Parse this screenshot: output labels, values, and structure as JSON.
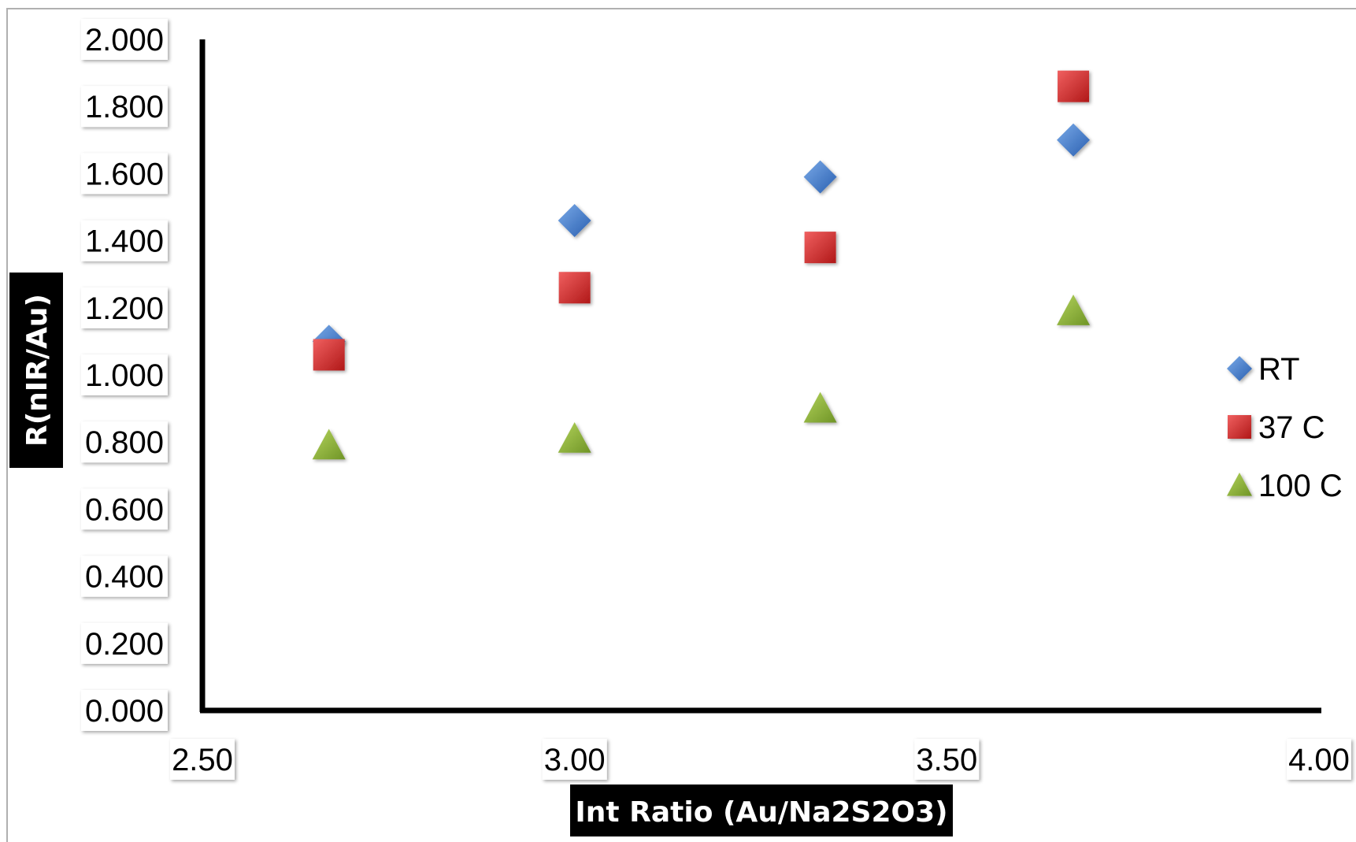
{
  "chart_data": {
    "type": "scatter",
    "title": "",
    "xlabel": "Int Ratio (Au/Na2S2O3)",
    "ylabel": "R(nIR/Au)",
    "xlim": [
      2.5,
      4.0
    ],
    "ylim": [
      0.0,
      2.0
    ],
    "x_ticks": [
      "2.50",
      "3.00",
      "3.50",
      "4.00"
    ],
    "y_ticks": [
      "0.000",
      "0.200",
      "0.400",
      "0.600",
      "0.800",
      "1.000",
      "1.200",
      "1.400",
      "1.600",
      "1.800",
      "2.000"
    ],
    "grid": false,
    "legend_position": "right",
    "series": [
      {
        "name": "RT",
        "marker": "diamond",
        "color": "#3d78c9",
        "points": [
          [
            2.67,
            1.1
          ],
          [
            3.0,
            1.46
          ],
          [
            3.33,
            1.59
          ],
          [
            3.67,
            1.7
          ]
        ]
      },
      {
        "name": "37 C",
        "marker": "square",
        "color": "#d42a2a",
        "points": [
          [
            2.67,
            1.06
          ],
          [
            3.0,
            1.26
          ],
          [
            3.33,
            1.38
          ],
          [
            3.67,
            1.86
          ]
        ]
      },
      {
        "name": "100 C",
        "marker": "triangle",
        "color": "#8db33a",
        "points": [
          [
            2.67,
            0.79
          ],
          [
            3.0,
            0.81
          ],
          [
            3.33,
            0.9
          ],
          [
            3.67,
            1.19
          ]
        ]
      }
    ]
  }
}
